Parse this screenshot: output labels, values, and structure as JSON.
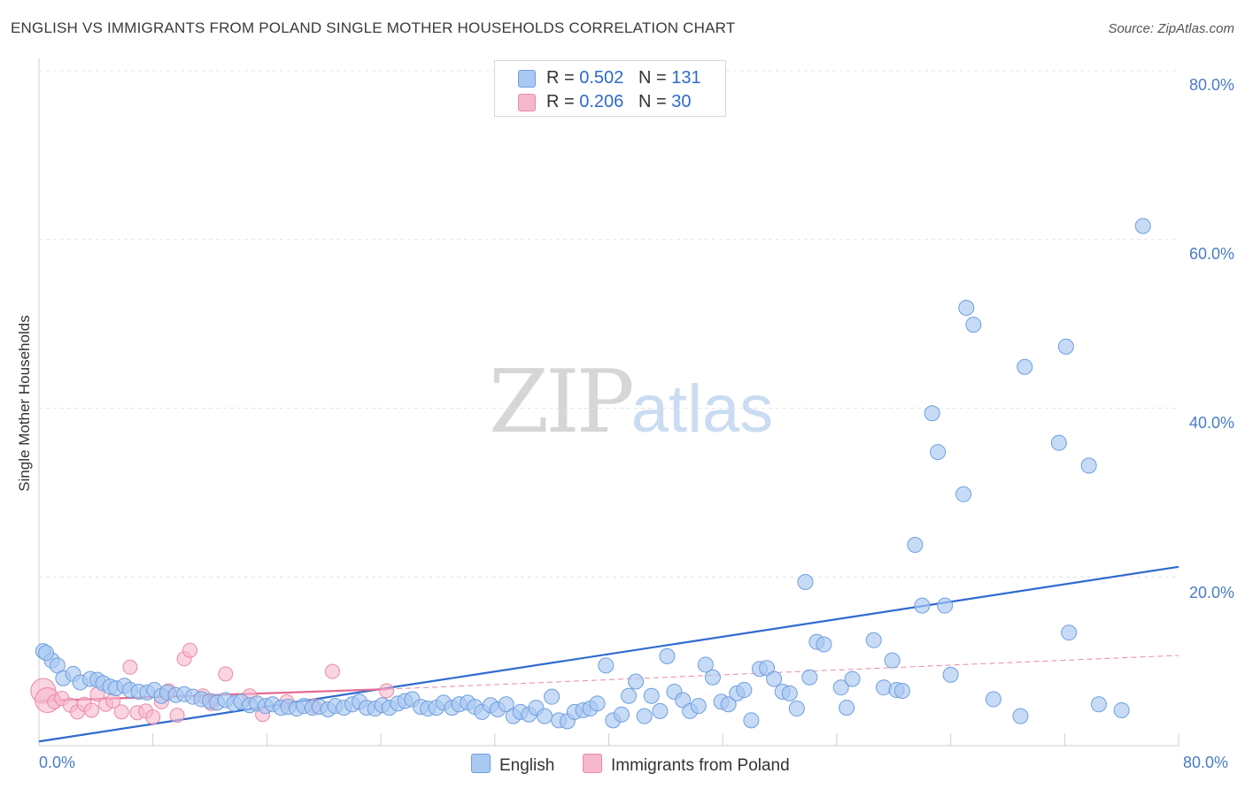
{
  "header": {
    "title": "ENGLISH VS IMMIGRANTS FROM POLAND SINGLE MOTHER HOUSEHOLDS CORRELATION CHART",
    "source": "Source: ZipAtlas.com"
  },
  "watermark": {
    "zip": "ZIP",
    "atlas": "atlas"
  },
  "legend": {
    "rows": [
      {
        "r_label": "R =",
        "r_value": "0.502",
        "n_label": "N =",
        "n_value": "131",
        "color": "#a9c8f2"
      },
      {
        "r_label": "R =",
        "r_value": "0.206",
        "n_label": "N =",
        "n_value": "30",
        "color": "#f6b8cb"
      }
    ]
  },
  "bottom_legend": [
    {
      "label": "English",
      "color": "#a9c8f2"
    },
    {
      "label": "Immigrants from Poland",
      "color": "#f6b8cb"
    }
  ],
  "colors": {
    "english_fill": "#a9c8f2",
    "english_stroke": "#6f9fdc",
    "english_line": "#2f6ad0",
    "poland_fill": "#f6b8cb",
    "poland_stroke": "#e98aa8",
    "poland_line": "#e46a93",
    "grid": "#e3e3e3",
    "axis": "#cfcfcf",
    "tick_text": "#4a7cc4"
  },
  "chart_data": {
    "type": "scatter",
    "title": "ENGLISH VS IMMIGRANTS FROM POLAND SINGLE MOTHER HOUSEHOLDS CORRELATION CHART",
    "xlabel": "",
    "ylabel": "Single Mother Households",
    "xlim": [
      0,
      80
    ],
    "ylim": [
      0,
      80
    ],
    "x_tick_labels": [
      "0.0%",
      "80.0%"
    ],
    "y_tick_labels": [
      "20.0%",
      "40.0%",
      "60.0%",
      "80.0%"
    ],
    "y_ticks": [
      20,
      40,
      60,
      80
    ],
    "grid": true,
    "legend_position": "top-center",
    "series": [
      {
        "name": "English",
        "r": 0.502,
        "n": 131,
        "trend": {
          "x": [
            0,
            80
          ],
          "y": [
            0.5,
            21.2
          ]
        },
        "points": [
          [
            0.3,
            11.2
          ],
          [
            0.9,
            10.1
          ],
          [
            1.3,
            9.5
          ],
          [
            1.7,
            8.0
          ],
          [
            2.4,
            8.5
          ],
          [
            2.9,
            7.5
          ],
          [
            3.6,
            7.9
          ],
          [
            4.1,
            7.8
          ],
          [
            4.5,
            7.4
          ],
          [
            5.0,
            7.0
          ],
          [
            5.4,
            6.8
          ],
          [
            6.0,
            7.1
          ],
          [
            6.4,
            6.6
          ],
          [
            7.0,
            6.4
          ],
          [
            7.6,
            6.3
          ],
          [
            8.1,
            6.6
          ],
          [
            8.6,
            5.9
          ],
          [
            9.0,
            6.3
          ],
          [
            9.6,
            6.0
          ],
          [
            10.2,
            6.1
          ],
          [
            10.8,
            5.8
          ],
          [
            11.4,
            5.5
          ],
          [
            12.0,
            5.3
          ],
          [
            12.5,
            5.1
          ],
          [
            13.1,
            5.4
          ],
          [
            13.7,
            5.0
          ],
          [
            14.2,
            5.2
          ],
          [
            14.8,
            4.8
          ],
          [
            15.3,
            5.0
          ],
          [
            15.9,
            4.7
          ],
          [
            16.4,
            4.9
          ],
          [
            17.0,
            4.5
          ],
          [
            17.5,
            4.6
          ],
          [
            18.1,
            4.4
          ],
          [
            18.6,
            4.7
          ],
          [
            19.2,
            4.5
          ],
          [
            19.7,
            4.6
          ],
          [
            20.3,
            4.3
          ],
          [
            20.8,
            4.7
          ],
          [
            21.4,
            4.5
          ],
          [
            22.0,
            4.9
          ],
          [
            22.5,
            5.2
          ],
          [
            23.0,
            4.5
          ],
          [
            23.6,
            4.4
          ],
          [
            24.1,
            4.8
          ],
          [
            24.6,
            4.5
          ],
          [
            25.2,
            5.0
          ],
          [
            25.7,
            5.3
          ],
          [
            26.2,
            5.5
          ],
          [
            26.8,
            4.6
          ],
          [
            27.3,
            4.4
          ],
          [
            27.9,
            4.5
          ],
          [
            28.4,
            5.1
          ],
          [
            29.0,
            4.5
          ],
          [
            29.5,
            4.9
          ],
          [
            30.1,
            5.1
          ],
          [
            30.6,
            4.6
          ],
          [
            31.1,
            4.0
          ],
          [
            31.7,
            4.8
          ],
          [
            32.2,
            4.3
          ],
          [
            32.8,
            4.9
          ],
          [
            33.3,
            3.5
          ],
          [
            33.8,
            4.0
          ],
          [
            34.4,
            3.7
          ],
          [
            34.9,
            4.5
          ],
          [
            35.5,
            3.5
          ],
          [
            36.0,
            5.8
          ],
          [
            36.5,
            3.0
          ],
          [
            37.1,
            2.9
          ],
          [
            37.6,
            4.0
          ],
          [
            38.2,
            4.2
          ],
          [
            38.7,
            4.4
          ],
          [
            39.2,
            5.0
          ],
          [
            39.8,
            9.5
          ],
          [
            40.3,
            3.0
          ],
          [
            40.9,
            3.7
          ],
          [
            41.4,
            5.9
          ],
          [
            41.9,
            7.6
          ],
          [
            42.5,
            3.5
          ],
          [
            43.0,
            5.9
          ],
          [
            43.6,
            4.1
          ],
          [
            44.1,
            10.6
          ],
          [
            44.6,
            6.4
          ],
          [
            45.2,
            5.4
          ],
          [
            45.7,
            4.1
          ],
          [
            46.3,
            4.7
          ],
          [
            46.8,
            9.6
          ],
          [
            47.3,
            8.1
          ],
          [
            47.9,
            5.2
          ],
          [
            48.4,
            4.9
          ],
          [
            49.0,
            6.2
          ],
          [
            49.5,
            6.6
          ],
          [
            50.0,
            3.0
          ],
          [
            50.6,
            9.1
          ],
          [
            51.1,
            9.2
          ],
          [
            51.6,
            7.9
          ],
          [
            52.2,
            6.4
          ],
          [
            52.7,
            6.2
          ],
          [
            53.2,
            4.4
          ],
          [
            53.8,
            19.4
          ],
          [
            54.1,
            8.1
          ],
          [
            54.6,
            12.3
          ],
          [
            55.1,
            12.0
          ],
          [
            56.3,
            6.9
          ],
          [
            56.7,
            4.5
          ],
          [
            57.1,
            7.9
          ],
          [
            58.6,
            12.5
          ],
          [
            59.3,
            6.9
          ],
          [
            59.9,
            10.1
          ],
          [
            60.2,
            6.6
          ],
          [
            60.6,
            6.5
          ],
          [
            61.5,
            23.8
          ],
          [
            62.0,
            16.6
          ],
          [
            62.7,
            39.4
          ],
          [
            63.1,
            34.8
          ],
          [
            63.6,
            16.6
          ],
          [
            64.0,
            8.4
          ],
          [
            64.9,
            29.8
          ],
          [
            65.1,
            51.9
          ],
          [
            65.6,
            49.9
          ],
          [
            67.0,
            5.5
          ],
          [
            68.9,
            3.5
          ],
          [
            69.2,
            44.9
          ],
          [
            71.6,
            35.9
          ],
          [
            72.1,
            47.3
          ],
          [
            72.3,
            13.4
          ],
          [
            73.7,
            33.2
          ],
          [
            74.4,
            4.9
          ],
          [
            76.0,
            4.2
          ],
          [
            77.5,
            61.6
          ],
          [
            0.5,
            11.0
          ]
        ]
      },
      {
        "name": "Immigrants from Poland",
        "r": 0.206,
        "n": 30,
        "trend": {
          "x": [
            0,
            24.5
          ],
          "y": [
            5.3,
            6.7
          ]
        },
        "trend_extended": {
          "x": [
            24.5,
            80
          ],
          "y": [
            6.7,
            10.7
          ]
        },
        "points": [
          [
            0.3,
            6.5
          ],
          [
            0.6,
            5.4
          ],
          [
            1.1,
            5.2
          ],
          [
            1.6,
            5.6
          ],
          [
            2.2,
            4.8
          ],
          [
            2.7,
            4.0
          ],
          [
            3.2,
            4.9
          ],
          [
            3.7,
            4.2
          ],
          [
            4.1,
            6.1
          ],
          [
            4.7,
            4.9
          ],
          [
            5.2,
            5.3
          ],
          [
            5.8,
            4.0
          ],
          [
            6.4,
            9.3
          ],
          [
            6.9,
            3.9
          ],
          [
            7.5,
            4.1
          ],
          [
            8.0,
            3.4
          ],
          [
            8.6,
            5.2
          ],
          [
            9.1,
            6.5
          ],
          [
            9.7,
            3.6
          ],
          [
            10.2,
            10.3
          ],
          [
            10.6,
            11.3
          ],
          [
            11.5,
            5.9
          ],
          [
            12.1,
            5.0
          ],
          [
            13.1,
            8.5
          ],
          [
            14.8,
            5.9
          ],
          [
            15.7,
            3.7
          ],
          [
            17.4,
            5.2
          ],
          [
            19.3,
            4.7
          ],
          [
            20.6,
            8.8
          ],
          [
            24.4,
            6.5
          ]
        ]
      }
    ]
  }
}
